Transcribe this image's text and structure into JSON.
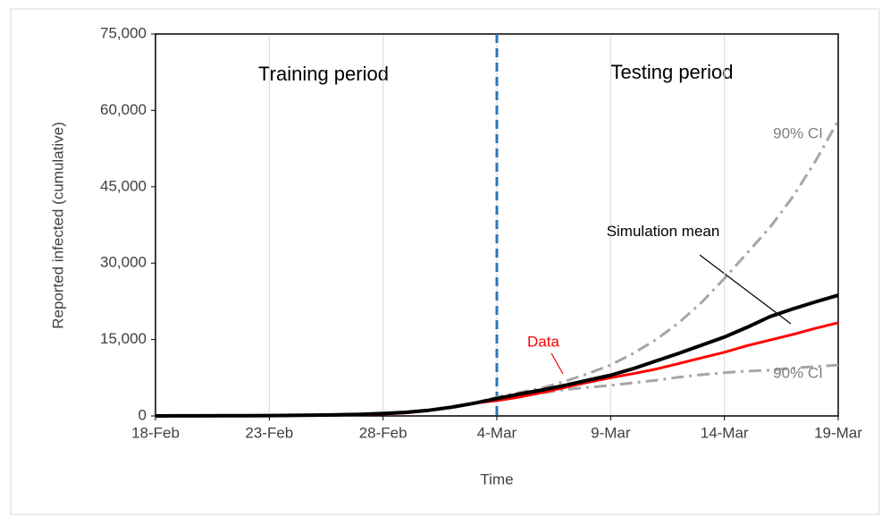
{
  "chart_data": {
    "type": "line",
    "x_label": "Time",
    "y_label": "Reported infected (cumulative)",
    "annotations": [
      "Training period",
      "Testing period"
    ],
    "categories": [
      "18-Feb",
      null,
      null,
      null,
      null,
      "23-Feb",
      null,
      null,
      null,
      null,
      "28-Feb",
      null,
      null,
      null,
      null,
      "4-Mar",
      null,
      null,
      null,
      null,
      "9-Mar",
      null,
      null,
      null,
      null,
      "14-Mar",
      null,
      null,
      null,
      null,
      "19-Mar"
    ],
    "series": [
      {
        "name": "Simulation mean",
        "color": "#000000",
        "style": "solid",
        "width": 4,
        "values": [
          0,
          10,
          20,
          30,
          50,
          70,
          100,
          150,
          220,
          320,
          480,
          700,
          1100,
          1700,
          2500,
          3400,
          4300,
          5100,
          6000,
          7000,
          8000,
          9300,
          10800,
          12300,
          13900,
          15500,
          17400,
          19500,
          21000,
          22400,
          23700
        ]
      },
      {
        "name": "Data",
        "color": "#ff0000",
        "style": "solid",
        "width": 3,
        "values": [
          0,
          10,
          20,
          30,
          50,
          70,
          90,
          120,
          180,
          250,
          350,
          600,
          1100,
          1800,
          2500,
          3000,
          3700,
          4600,
          5600,
          6600,
          7500,
          8300,
          9200,
          10300,
          11400,
          12500,
          13800,
          14900,
          16000,
          17200,
          18300
        ]
      },
      {
        "name": "90% CI",
        "color": "#a6a6a6",
        "style": "dashdot",
        "width": 3,
        "values": [
          0,
          10,
          20,
          30,
          50,
          70,
          100,
          150,
          220,
          320,
          480,
          700,
          1100,
          1700,
          2500,
          3700,
          4600,
          5500,
          6800,
          8300,
          10000,
          12300,
          15000,
          18300,
          22300,
          27000,
          32000,
          37000,
          43000,
          50000,
          58000
        ]
      },
      {
        "name": "90% CI",
        "color": "#a6a6a6",
        "style": "dashdot",
        "width": 3,
        "values": [
          0,
          10,
          20,
          30,
          50,
          70,
          100,
          150,
          220,
          320,
          480,
          700,
          1100,
          1700,
          2500,
          3400,
          3900,
          4500,
          5200,
          5600,
          6000,
          6500,
          7000,
          7600,
          8100,
          8500,
          8800,
          9000,
          9400,
          9700,
          10000
        ]
      }
    ],
    "ylim": [
      0,
      75000
    ],
    "yticks": [
      0,
      {
        "value": 15000,
        "label": "15,000"
      },
      {
        "value": 30000,
        "label": "30,000"
      },
      {
        "value": 45000,
        "label": "45,000"
      },
      {
        "value": 60000,
        "label": "60,000"
      },
      {
        "value": 75000,
        "label": "75,000"
      }
    ],
    "grid": "x",
    "divider": {
      "at": "4-Mar",
      "color": "#2e75b6"
    }
  }
}
